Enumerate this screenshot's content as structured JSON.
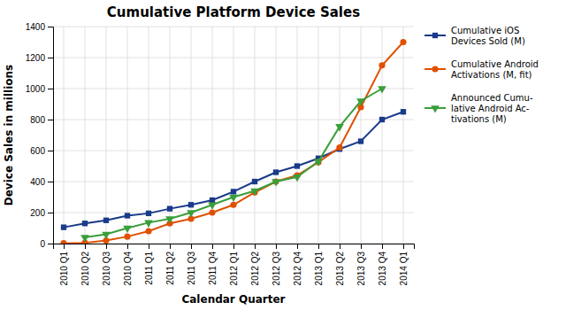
{
  "chart_data": {
    "type": "line",
    "title": "Cumulative Platform Device Sales",
    "xlabel": "Calendar Quarter",
    "ylabel": "Device Sales in millions",
    "categories": [
      "2010 Q1",
      "2010 Q2",
      "2010 Q3",
      "2010 Q4",
      "2011 Q1",
      "2011 Q2",
      "2011 Q3",
      "2011 Q4",
      "2012 Q1",
      "2012 Q2",
      "2012 Q3",
      "2012 Q4",
      "2013 Q1",
      "2013 Q2",
      "2013 Q3",
      "2013 Q4",
      "2014 Q1"
    ],
    "series": [
      {
        "name": "Cumulative iOS\nDevices Sold (M)",
        "color": "#1a3a8a",
        "marker": "square",
        "values": [
          105,
          130,
          150,
          180,
          195,
          225,
          250,
          280,
          335,
          400,
          460,
          500,
          550,
          610,
          660,
          800,
          850
        ]
      },
      {
        "name": "Cumulative Android\nActivations (M, fit)",
        "color": "#e05000",
        "marker": "circle",
        "values": [
          2,
          5,
          20,
          45,
          80,
          130,
          160,
          200,
          250,
          330,
          400,
          440,
          525,
          620,
          880,
          1150,
          1300
        ]
      },
      {
        "name": "Announced Cumu-\nlative Android Ac-\ntivations (M)",
        "color": "#3a9e3a",
        "marker": "triangle-down",
        "values": [
          null,
          40,
          60,
          100,
          135,
          160,
          200,
          250,
          300,
          340,
          400,
          430,
          530,
          755,
          920,
          1000,
          null
        ]
      }
    ],
    "ylim": [
      0,
      1400
    ],
    "yticks": [
      0,
      200,
      400,
      600,
      800,
      1000,
      1200,
      1400
    ],
    "grid": true,
    "legend": "right"
  }
}
